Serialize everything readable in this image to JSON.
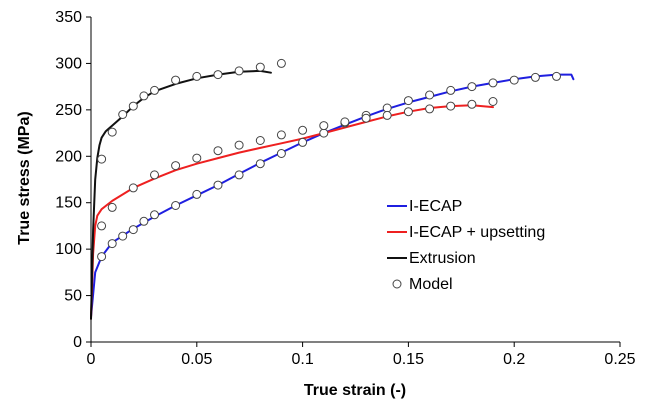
{
  "chart_data": {
    "type": "line",
    "xlabel": "True strain (-)",
    "ylabel": "True stress (MPa)",
    "xlim": [
      0,
      0.25
    ],
    "ylim": [
      0,
      350
    ],
    "x_ticks": [
      "0",
      "0.05",
      "0.1",
      "0.15",
      "0.2",
      "0.25"
    ],
    "y_ticks": [
      "0",
      "50",
      "100",
      "150",
      "200",
      "250",
      "300",
      "350"
    ],
    "grid": false,
    "legend_position": "right",
    "series": [
      {
        "name": "I-ECAP",
        "color": "#1f1fe0",
        "x": [
          0,
          0.002,
          0.005,
          0.01,
          0.02,
          0.03,
          0.04,
          0.05,
          0.06,
          0.07,
          0.08,
          0.09,
          0.1,
          0.11,
          0.12,
          0.13,
          0.14,
          0.15,
          0.16,
          0.17,
          0.18,
          0.19,
          0.2,
          0.21,
          0.22,
          0.227,
          0.228
        ],
        "y": [
          27,
          75,
          92,
          107,
          122,
          135,
          147,
          158,
          169,
          181,
          193,
          204,
          215,
          225,
          234,
          243,
          251,
          258,
          264,
          270,
          275,
          279,
          283,
          286,
          288,
          288,
          283
        ]
      },
      {
        "name": "I-ECAP + upsetting",
        "color": "#ee2020",
        "x": [
          0,
          0.001,
          0.002,
          0.003,
          0.005,
          0.01,
          0.02,
          0.03,
          0.04,
          0.05,
          0.06,
          0.07,
          0.08,
          0.09,
          0.1,
          0.11,
          0.12,
          0.13,
          0.14,
          0.15,
          0.16,
          0.17,
          0.18,
          0.19
        ],
        "y": [
          25,
          95,
          125,
          136,
          143,
          152,
          166,
          176,
          185,
          192,
          198,
          204,
          209,
          214,
          219,
          225,
          231,
          237,
          243,
          248,
          252,
          254,
          255,
          253
        ]
      },
      {
        "name": "Extrusion",
        "color": "#111111",
        "x": [
          0,
          0.001,
          0.002,
          0.003,
          0.004,
          0.005,
          0.007,
          0.01,
          0.015,
          0.02,
          0.025,
          0.03,
          0.04,
          0.05,
          0.06,
          0.07,
          0.08,
          0.085
        ],
        "y": [
          25,
          120,
          175,
          198,
          212,
          220,
          227,
          233,
          243,
          254,
          263,
          270,
          278,
          284,
          288,
          291,
          292,
          290
        ]
      }
    ],
    "model": {
      "name": "Model",
      "marker": "open-circle",
      "points": [
        {
          "x": 0.005,
          "y": 92
        },
        {
          "x": 0.01,
          "y": 106
        },
        {
          "x": 0.015,
          "y": 114
        },
        {
          "x": 0.02,
          "y": 121
        },
        {
          "x": 0.025,
          "y": 130
        },
        {
          "x": 0.03,
          "y": 137
        },
        {
          "x": 0.04,
          "y": 147
        },
        {
          "x": 0.05,
          "y": 159
        },
        {
          "x": 0.06,
          "y": 169
        },
        {
          "x": 0.07,
          "y": 180
        },
        {
          "x": 0.08,
          "y": 192
        },
        {
          "x": 0.09,
          "y": 203
        },
        {
          "x": 0.1,
          "y": 215
        },
        {
          "x": 0.11,
          "y": 225
        },
        {
          "x": 0.12,
          "y": 236
        },
        {
          "x": 0.13,
          "y": 244
        },
        {
          "x": 0.14,
          "y": 252
        },
        {
          "x": 0.15,
          "y": 260
        },
        {
          "x": 0.16,
          "y": 266
        },
        {
          "x": 0.17,
          "y": 271
        },
        {
          "x": 0.18,
          "y": 275
        },
        {
          "x": 0.19,
          "y": 279
        },
        {
          "x": 0.2,
          "y": 282
        },
        {
          "x": 0.21,
          "y": 285
        },
        {
          "x": 0.22,
          "y": 286
        },
        {
          "x": 0.005,
          "y": 125
        },
        {
          "x": 0.01,
          "y": 145
        },
        {
          "x": 0.02,
          "y": 166
        },
        {
          "x": 0.03,
          "y": 180
        },
        {
          "x": 0.04,
          "y": 190
        },
        {
          "x": 0.05,
          "y": 198
        },
        {
          "x": 0.06,
          "y": 206
        },
        {
          "x": 0.07,
          "y": 212
        },
        {
          "x": 0.08,
          "y": 217
        },
        {
          "x": 0.09,
          "y": 223
        },
        {
          "x": 0.1,
          "y": 228
        },
        {
          "x": 0.11,
          "y": 233
        },
        {
          "x": 0.12,
          "y": 237
        },
        {
          "x": 0.13,
          "y": 241
        },
        {
          "x": 0.14,
          "y": 244
        },
        {
          "x": 0.15,
          "y": 248
        },
        {
          "x": 0.16,
          "y": 251
        },
        {
          "x": 0.17,
          "y": 254
        },
        {
          "x": 0.18,
          "y": 256
        },
        {
          "x": 0.19,
          "y": 259
        },
        {
          "x": 0.005,
          "y": 197
        },
        {
          "x": 0.01,
          "y": 226
        },
        {
          "x": 0.015,
          "y": 245
        },
        {
          "x": 0.02,
          "y": 254
        },
        {
          "x": 0.025,
          "y": 265
        },
        {
          "x": 0.03,
          "y": 271
        },
        {
          "x": 0.04,
          "y": 282
        },
        {
          "x": 0.05,
          "y": 286
        },
        {
          "x": 0.06,
          "y": 288
        },
        {
          "x": 0.07,
          "y": 292
        },
        {
          "x": 0.08,
          "y": 296
        },
        {
          "x": 0.09,
          "y": 300
        }
      ]
    }
  }
}
